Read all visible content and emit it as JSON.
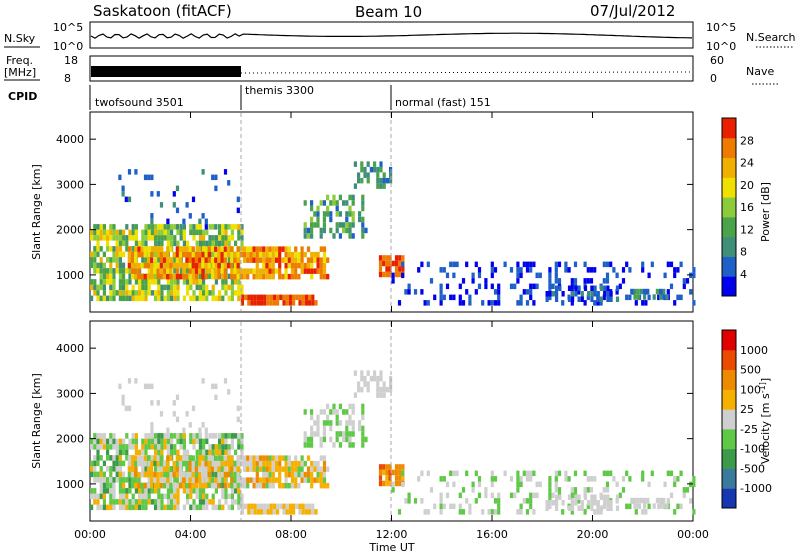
{
  "header": {
    "radar": "Saskatoon (fitACF)",
    "beam": "Beam 10",
    "date": "07/Jul/2012"
  },
  "noise_panel": {
    "left_label": "N.Sky",
    "right_label": "N.Search",
    "left_ticks": [
      "10^5",
      "10^0"
    ],
    "right_ticks": [
      "10^5",
      "10^0"
    ]
  },
  "freq_panel": {
    "left_label_1": "Freq.",
    "left_label_2": "[MHz]",
    "right_label": "Nave",
    "left_ticks": [
      "18",
      "8"
    ],
    "right_ticks": [
      "60",
      "0"
    ]
  },
  "cpid": {
    "label": "CPID",
    "segments": [
      {
        "name": "twofsound 3501",
        "start": 0,
        "end": 6
      },
      {
        "name": "themis 3300",
        "start": 6,
        "end": 12
      },
      {
        "name": "normal (fast) 151",
        "start": 12,
        "end": 24
      }
    ]
  },
  "chart_data": [
    {
      "type": "heatmap",
      "title": "",
      "ylabel": "Slant Range [km]",
      "xlabel": "",
      "xlim": [
        0,
        24
      ],
      "ylim": [
        180,
        4600
      ],
      "yticks": [
        "1000",
        "2000",
        "3000",
        "4000"
      ],
      "colorbar": {
        "label": "Power [dB]",
        "ticks": [
          "4",
          "8",
          "12",
          "16",
          "20",
          "24",
          "28"
        ],
        "colors": [
          "#0000ee",
          "#1f5fc8",
          "#3f8f78",
          "#4aa34a",
          "#8ccc3a",
          "#f0e000",
          "#f0b000",
          "#ee7b00",
          "#e82000"
        ]
      }
    },
    {
      "type": "heatmap",
      "title": "",
      "ylabel": "Slant Range [km]",
      "xlabel": "Time UT",
      "xlim": [
        0,
        24
      ],
      "ylim": [
        180,
        4600
      ],
      "yticks": [
        "1000",
        "2000",
        "3000",
        "4000"
      ],
      "xticks": [
        "00:00",
        "04:00",
        "08:00",
        "12:00",
        "16:00",
        "20:00",
        "00:00"
      ],
      "colorbar": {
        "label": "Velocity [m s^-1]",
        "ticks": [
          "1000",
          "500",
          "100",
          "25",
          "-25",
          "-100",
          "-500",
          "-1000"
        ],
        "colors": [
          "#1538b0",
          "#3a7a9c",
          "#3d9a4b",
          "#5fc846",
          "#cfcfcf",
          "#f5b000",
          "#ee8a00",
          "#ea4b00",
          "#e00000"
        ]
      }
    }
  ]
}
